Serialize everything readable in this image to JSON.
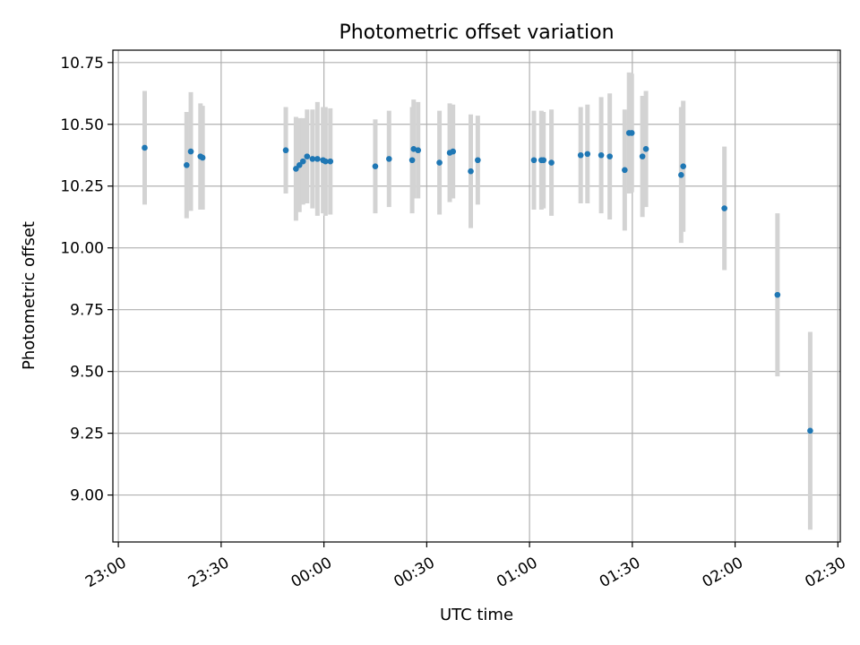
{
  "chart_data": {
    "type": "scatter",
    "title": "Photometric offset variation",
    "xlabel": "UTC time",
    "ylabel": "Photometric offset",
    "x_tick_labels": [
      "23:00",
      "23:30",
      "00:00",
      "00:30",
      "01:00",
      "01:30",
      "02:00",
      "02:30"
    ],
    "y_ticks": [
      "9.00",
      "9.25",
      "9.50",
      "9.75",
      "10.00",
      "10.25",
      "10.50",
      "10.75"
    ],
    "grid": true,
    "x": [
      "23:07:41",
      "23:19:55",
      "23:21:09",
      "23:23:58",
      "23:24:35",
      "23:48:52",
      "23:51:50",
      "23:52:51",
      "23:53:53",
      "23:55:05",
      "23:56:40",
      "23:58:06",
      "23:59:45",
      "00:00:27",
      "00:01:52",
      "00:14:59",
      "00:19:00",
      "00:25:45",
      "00:26:11",
      "00:27:29",
      "00:33:43",
      "00:36:43",
      "00:37:40",
      "00:42:51",
      "00:44:54",
      "01:01:17",
      "01:03:28",
      "01:04:05",
      "01:06:24",
      "01:14:56",
      "01:16:55",
      "01:20:55",
      "01:23:25",
      "01:27:47",
      "01:29:03",
      "01:29:51",
      "01:32:57",
      "01:33:59",
      "01:44:15",
      "01:44:52",
      "01:56:53",
      "02:12:22",
      "02:21:55"
    ],
    "y": [
      10.405,
      10.335,
      10.39,
      10.37,
      10.365,
      10.395,
      10.32,
      10.335,
      10.35,
      10.37,
      10.36,
      10.36,
      10.355,
      10.35,
      10.35,
      10.33,
      10.36,
      10.355,
      10.4,
      10.395,
      10.345,
      10.385,
      10.39,
      10.31,
      10.355,
      10.355,
      10.355,
      10.355,
      10.345,
      10.375,
      10.38,
      10.375,
      10.37,
      10.315,
      10.465,
      10.465,
      10.37,
      10.4,
      10.295,
      10.33,
      10.16,
      9.81,
      9.26
    ],
    "yerr": [
      0.23,
      0.215,
      0.24,
      0.215,
      0.21,
      0.175,
      0.21,
      0.19,
      0.175,
      0.19,
      0.2,
      0.23,
      0.215,
      0.22,
      0.215,
      0.19,
      0.195,
      0.215,
      0.2,
      0.195,
      0.21,
      0.2,
      0.19,
      0.23,
      0.18,
      0.2,
      0.2,
      0.195,
      0.215,
      0.195,
      0.2,
      0.235,
      0.255,
      0.245,
      0.245,
      0.24,
      0.245,
      0.235,
      0.275,
      0.265,
      0.25,
      0.33,
      0.4
    ],
    "point_color": "#1f77b4",
    "errorbar_color": "#d3d3d3"
  }
}
